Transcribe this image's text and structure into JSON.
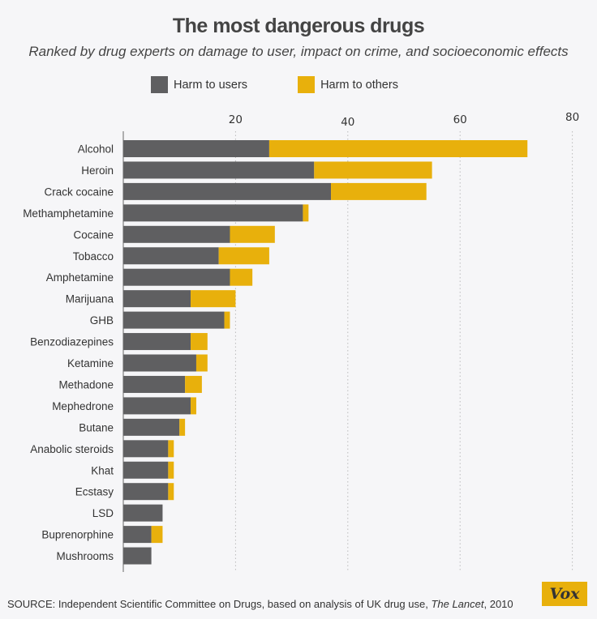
{
  "chart_data": {
    "type": "bar",
    "orientation": "horizontal",
    "stacked": true,
    "title": "The most dangerous drugs",
    "subtitle": "Ranked by drug experts on damage to user, impact on crime, and socioeconomic effects",
    "xlabel": "",
    "ylabel": "",
    "xlim": [
      0,
      80
    ],
    "xticks": [
      20,
      40,
      60,
      80
    ],
    "grid": true,
    "legend_position": "top",
    "categories": [
      "Alcohol",
      "Heroin",
      "Crack cocaine",
      "Methamphetamine",
      "Cocaine",
      "Tobacco",
      "Amphetamine",
      "Marijuana",
      "GHB",
      "Benzodiazepines",
      "Ketamine",
      "Methadone",
      "Mephedrone",
      "Butane",
      "Anabolic steroids",
      "Khat",
      "Ecstasy",
      "LSD",
      "Buprenorphine",
      "Mushrooms"
    ],
    "series": [
      {
        "name": "Harm to users",
        "color": "#5f5f61",
        "values": [
          26,
          34,
          37,
          32,
          19,
          17,
          19,
          12,
          18,
          12,
          13,
          11,
          12,
          10,
          8,
          8,
          8,
          7,
          5,
          5
        ]
      },
      {
        "name": "Harm to others",
        "color": "#e8b00c",
        "values": [
          46,
          21,
          17,
          1,
          8,
          9,
          4,
          8,
          1,
          3,
          2,
          3,
          1,
          1,
          1,
          1,
          1,
          0,
          2,
          0
        ]
      }
    ]
  },
  "legend": [
    {
      "label": "Harm to users",
      "color": "#5f5f61"
    },
    {
      "label": "Harm to others",
      "color": "#e8b00c"
    }
  ],
  "source": {
    "prefix": "SOURCE: Independent Scientific Committee on Drugs, based on analysis of UK drug use, ",
    "publication": "The Lancet",
    "suffix": ", 2010"
  },
  "brand": "Vox"
}
